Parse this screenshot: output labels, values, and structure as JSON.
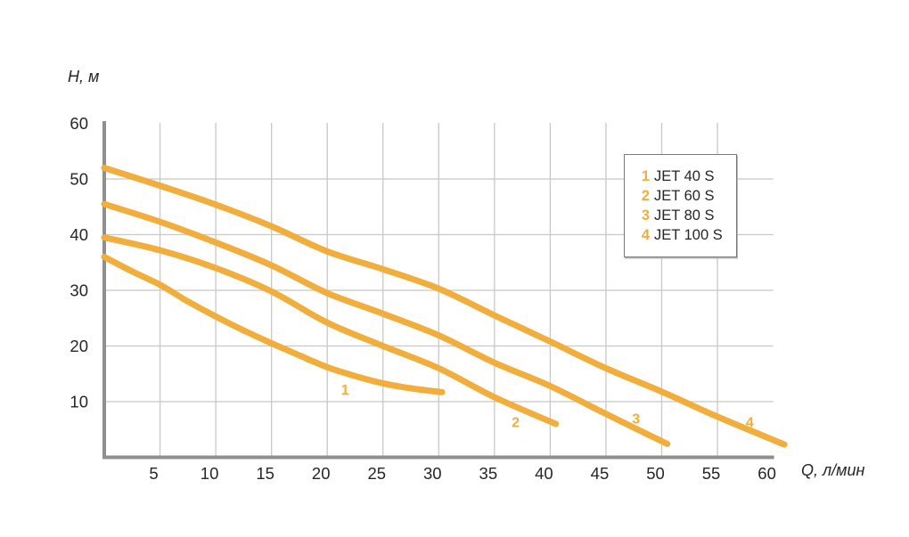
{
  "chart_data": {
    "type": "line",
    "title": "",
    "xlabel": "Q, л/мин",
    "ylabel": "H, м",
    "xlim": [
      0,
      61
    ],
    "ylim": [
      0,
      60
    ],
    "x_ticks": [
      5,
      10,
      15,
      20,
      25,
      30,
      35,
      40,
      45,
      50,
      55,
      60
    ],
    "y_ticks": [
      10,
      20,
      30,
      40,
      50,
      60
    ],
    "grid": {
      "vertical_lines_at": [
        5,
        10,
        15,
        20,
        25,
        30,
        35,
        40,
        45,
        50,
        55
      ],
      "horizontal_lines_at": [
        10,
        20,
        30,
        40,
        50
      ]
    },
    "series": [
      {
        "id": "1",
        "name": "JET 40 S",
        "points": [
          [
            0,
            36
          ],
          [
            2.5,
            33.4
          ],
          [
            5,
            31
          ],
          [
            7.5,
            28
          ],
          [
            10,
            25.3
          ],
          [
            12.5,
            22.8
          ],
          [
            15,
            20.5
          ],
          [
            17.5,
            18.3
          ],
          [
            20,
            16.2
          ],
          [
            22.5,
            14.6
          ],
          [
            25,
            13.3
          ],
          [
            27.5,
            12.4
          ],
          [
            30.3,
            11.7
          ]
        ]
      },
      {
        "id": "2",
        "name": "JET 60 S",
        "points": [
          [
            0,
            39.5
          ],
          [
            5,
            37.2
          ],
          [
            10,
            34
          ],
          [
            15,
            29.8
          ],
          [
            20,
            24.2
          ],
          [
            25,
            20
          ],
          [
            30,
            16
          ],
          [
            35,
            10.8
          ],
          [
            40.5,
            6
          ]
        ]
      },
      {
        "id": "3",
        "name": "JET 80 S",
        "points": [
          [
            0,
            45.5
          ],
          [
            5,
            42.3
          ],
          [
            10,
            38.6
          ],
          [
            15,
            34.5
          ],
          [
            20,
            29.5
          ],
          [
            25,
            25.8
          ],
          [
            30,
            21.9
          ],
          [
            35,
            17
          ],
          [
            40,
            12.8
          ],
          [
            45,
            7.8
          ],
          [
            50.5,
            2.4
          ]
        ]
      },
      {
        "id": "4",
        "name": "JET 100 S",
        "points": [
          [
            0,
            52
          ],
          [
            5,
            48.8
          ],
          [
            10,
            45.4
          ],
          [
            15,
            41.5
          ],
          [
            20,
            37
          ],
          [
            25,
            33.8
          ],
          [
            30,
            30.3
          ],
          [
            35,
            25.5
          ],
          [
            40,
            20.8
          ],
          [
            45,
            16
          ],
          [
            50,
            11.8
          ],
          [
            55,
            7.3
          ],
          [
            61,
            2.3
          ]
        ]
      }
    ],
    "curve_labels": [
      {
        "text": "1",
        "q": 21.6,
        "h": 12.2
      },
      {
        "text": "2",
        "q": 36.9,
        "h": 6.3
      },
      {
        "text": "3",
        "q": 47.7,
        "h": 7.0
      },
      {
        "text": "4",
        "q": 57.9,
        "h": 6.3
      }
    ],
    "legend": {
      "position": "top-right",
      "entries": [
        {
          "marker": "1",
          "label": "JET 40 S"
        },
        {
          "marker": "2",
          "label": "JET 60 S"
        },
        {
          "marker": "3",
          "label": "JET 80 S"
        },
        {
          "marker": "4",
          "label": "JET 100 S"
        }
      ]
    }
  },
  "colors": {
    "curve": "#F1AE3D",
    "grid": "#C8C8C8",
    "axis": "#8F8F8F",
    "text": "#262626",
    "background": "#FFFFFF",
    "legend_border": "#7A7A7A"
  }
}
